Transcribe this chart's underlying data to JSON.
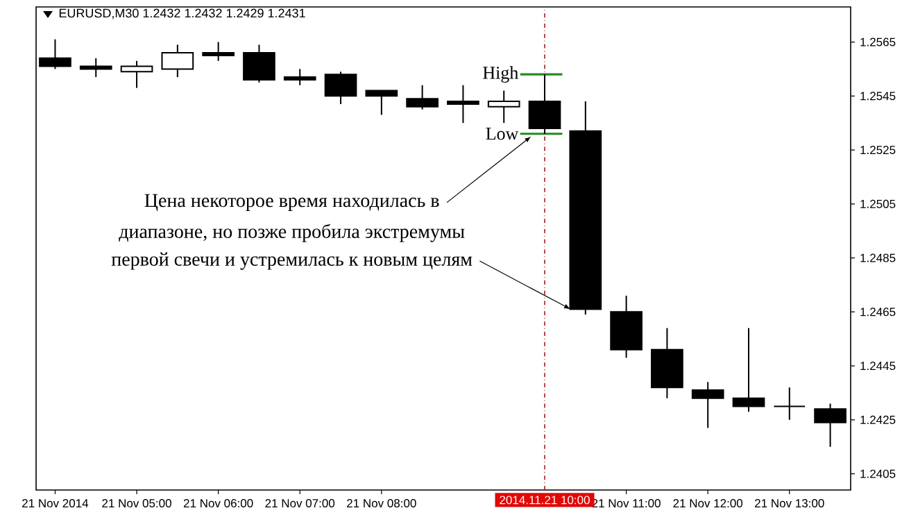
{
  "chart_data": {
    "type": "candlestick",
    "title": "EURUSD,M30 1.2432 1.2432 1.2429 1.2431",
    "x": [
      "2014-11-21T04:00",
      "2014-11-21T04:30",
      "2014-11-21T05:00",
      "2014-11-21T05:30",
      "2014-11-21T06:00",
      "2014-11-21T06:30",
      "2014-11-21T07:00",
      "2014-11-21T07:30",
      "2014-11-21T08:00",
      "2014-11-21T08:30",
      "2014-11-21T09:00",
      "2014-11-21T09:30",
      "2014-11-21T10:00",
      "2014-11-21T10:30",
      "2014-11-21T11:00",
      "2014-11-21T11:30",
      "2014-11-21T12:00",
      "2014-11-21T12:30",
      "2014-11-21T13:00",
      "2014-11-21T13:30"
    ],
    "ohlc": [
      [
        1.2559,
        1.2566,
        1.2555,
        1.2556
      ],
      [
        1.2556,
        1.2559,
        1.2552,
        1.2555
      ],
      [
        1.2554,
        1.2558,
        1.2548,
        1.2556
      ],
      [
        1.2555,
        1.2564,
        1.2552,
        1.2561
      ],
      [
        1.2561,
        1.2565,
        1.2558,
        1.256
      ],
      [
        1.2561,
        1.2564,
        1.255,
        1.2551
      ],
      [
        1.2552,
        1.2555,
        1.2549,
        1.2551
      ],
      [
        1.2553,
        1.2554,
        1.2542,
        1.2545
      ],
      [
        1.2547,
        1.2547,
        1.2538,
        1.2545
      ],
      [
        1.2544,
        1.2549,
        1.254,
        1.2541
      ],
      [
        1.2543,
        1.2549,
        1.2535,
        1.2542
      ],
      [
        1.2541,
        1.2547,
        1.2535,
        1.2543
      ],
      [
        1.2543,
        1.2553,
        1.2531,
        1.2533
      ],
      [
        1.2532,
        1.2543,
        1.2464,
        1.2466
      ],
      [
        1.2465,
        1.2471,
        1.2448,
        1.2451
      ],
      [
        1.2451,
        1.2459,
        1.2433,
        1.2437
      ],
      [
        1.2436,
        1.2439,
        1.2422,
        1.2433
      ],
      [
        1.2433,
        1.2459,
        1.2428,
        1.243
      ],
      [
        1.243,
        1.2437,
        1.2425,
        1.243
      ],
      [
        1.2429,
        1.2431,
        1.2415,
        1.2424
      ]
    ],
    "color": "#000000",
    "series": [
      {
        "name": "High",
        "type": "line",
        "x": [
          "2014-11-21T09:42",
          "2014-11-21T10:13"
        ],
        "values": [
          1.2553,
          1.2553
        ],
        "color": "#228b22"
      },
      {
        "name": "Low",
        "type": "line",
        "x": [
          "2014-11-21T09:42",
          "2014-11-21T10:13"
        ],
        "values": [
          1.2531,
          1.2531
        ],
        "color": "#228b22"
      }
    ],
    "xlim": [
      "2014-11-21T03:46",
      "2014-11-21T13:45"
    ],
    "ylim": [
      1.2399,
      1.2578
    ],
    "xticks": [
      {
        "value": "2014-11-21T04:00",
        "label": "21 Nov 2014"
      },
      {
        "value": "2014-11-21T05:00",
        "label": "21 Nov 05:00"
      },
      {
        "value": "2014-11-21T06:00",
        "label": "21 Nov 06:00"
      },
      {
        "value": "2014-11-21T07:00",
        "label": "21 Nov 07:00"
      },
      {
        "value": "2014-11-21T08:00",
        "label": "21 Nov 08:00"
      },
      {
        "value": "2014-11-21T11:00",
        "label": "21 Nov 11:00"
      },
      {
        "value": "2014-11-21T12:00",
        "label": "21 Nov 12:00"
      },
      {
        "value": "2014-11-21T13:00",
        "label": "21 Nov 13:00"
      }
    ],
    "yticks": [
      1.2405,
      1.2425,
      1.2445,
      1.2465,
      1.2485,
      1.2505,
      1.2525,
      1.2545,
      1.2565
    ],
    "ref_lines": [
      {
        "axis": "x",
        "value": "2014-11-21T10:00",
        "label": "2014.11.21 10:00",
        "color": "#a01c1c",
        "line_style": "dashdot"
      }
    ],
    "annotations": [
      {
        "text": "Цена некоторое время находилась в",
        "x": "2014-11-21T09:50",
        "y": 1.253
      },
      "диапазоне, но позже пробила экстремумы",
      {
        "text": "первой свечи и устремилась к новым целям",
        "x": "2014-11-21T10:19",
        "y": 1.2466
      }
    ]
  }
}
